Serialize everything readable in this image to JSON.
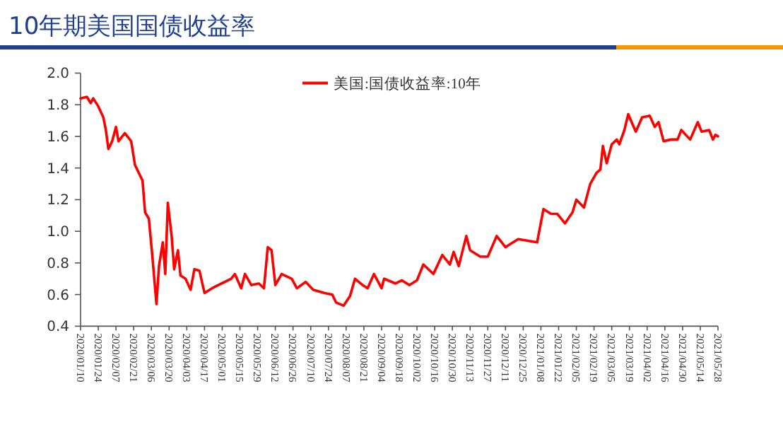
{
  "chart_data": {
    "type": "line",
    "title": "10年期美国国债收益率",
    "x": [
      "2020-01-10",
      "2020-01-15",
      "2020-01-18",
      "2020-01-20",
      "2020-01-24",
      "2020-01-28",
      "2020-01-30",
      "2020-02-01",
      "2020-02-04",
      "2020-02-07",
      "2020-02-09",
      "2020-02-14",
      "2020-02-19",
      "2020-02-22",
      "2020-02-28",
      "2020-03-01",
      "2020-03-04",
      "2020-03-07",
      "2020-03-10",
      "2020-03-12",
      "2020-03-15",
      "2020-03-17",
      "2020-03-19",
      "2020-03-22",
      "2020-03-24",
      "2020-03-27",
      "2020-03-29",
      "2020-04-02",
      "2020-04-06",
      "2020-04-09",
      "2020-04-13",
      "2020-04-17",
      "2020-04-23",
      "2020-04-28",
      "2020-05-08",
      "2020-05-11",
      "2020-05-16",
      "2020-05-19",
      "2020-05-24",
      "2020-05-30",
      "2020-06-03",
      "2020-06-06",
      "2020-06-09",
      "2020-06-12",
      "2020-06-17",
      "2020-06-25",
      "2020-06-29",
      "2020-07-06",
      "2020-07-12",
      "2020-07-21",
      "2020-07-27",
      "2020-07-30",
      "2020-08-05",
      "2020-08-10",
      "2020-08-14",
      "2020-08-20",
      "2020-08-24",
      "2020-08-29",
      "2020-09-04",
      "2020-09-06",
      "2020-09-15",
      "2020-09-20",
      "2020-09-26",
      "2020-10-02",
      "2020-10-07",
      "2020-10-15",
      "2020-10-22",
      "2020-10-28",
      "2020-10-31",
      "2020-11-04",
      "2020-11-10",
      "2020-11-13",
      "2020-11-21",
      "2020-11-27",
      "2020-12-04",
      "2020-12-11",
      "2020-12-21",
      "2021-01-05",
      "2021-01-10",
      "2021-01-16",
      "2021-01-21",
      "2021-01-27",
      "2021-02-02",
      "2021-02-05",
      "2021-02-11",
      "2021-02-16",
      "2021-02-21",
      "2021-02-24",
      "2021-02-26",
      "2021-03-01",
      "2021-03-05",
      "2021-03-09",
      "2021-03-11",
      "2021-03-15",
      "2021-03-18",
      "2021-03-24",
      "2021-03-29",
      "2021-04-04",
      "2021-04-08",
      "2021-04-11",
      "2021-04-15",
      "2021-04-21",
      "2021-04-26",
      "2021-04-29",
      "2021-05-06",
      "2021-05-12",
      "2021-05-15",
      "2021-05-21",
      "2021-05-24",
      "2021-05-26",
      "2021-05-28"
    ],
    "series": [
      {
        "name": "美国:国债收益率:10年",
        "color": "#ff0000",
        "values": [
          1.84,
          1.85,
          1.81,
          1.84,
          1.79,
          1.72,
          1.64,
          1.52,
          1.57,
          1.66,
          1.57,
          1.62,
          1.57,
          1.42,
          1.32,
          1.12,
          1.08,
          0.82,
          0.54,
          0.78,
          0.93,
          0.73,
          1.18,
          0.97,
          0.76,
          0.88,
          0.72,
          0.7,
          0.63,
          0.76,
          0.75,
          0.61,
          0.64,
          0.66,
          0.7,
          0.73,
          0.64,
          0.73,
          0.66,
          0.67,
          0.64,
          0.9,
          0.88,
          0.66,
          0.73,
          0.7,
          0.64,
          0.68,
          0.63,
          0.61,
          0.6,
          0.55,
          0.53,
          0.59,
          0.7,
          0.66,
          0.64,
          0.73,
          0.64,
          0.7,
          0.67,
          0.69,
          0.66,
          0.69,
          0.79,
          0.73,
          0.85,
          0.79,
          0.87,
          0.78,
          0.97,
          0.88,
          0.84,
          0.84,
          0.97,
          0.9,
          0.95,
          0.93,
          1.14,
          1.11,
          1.11,
          1.05,
          1.12,
          1.2,
          1.15,
          1.3,
          1.37,
          1.39,
          1.54,
          1.43,
          1.55,
          1.58,
          1.55,
          1.64,
          1.74,
          1.63,
          1.72,
          1.73,
          1.66,
          1.69,
          1.57,
          1.58,
          1.58,
          1.64,
          1.58,
          1.69,
          1.63,
          1.64,
          1.58,
          1.61,
          1.6
        ]
      }
    ],
    "xlim": [
      "2020-01-10",
      "2021-05-28"
    ],
    "xticks": [
      {
        "value": "2020-01-10",
        "label": "2020/01/10"
      },
      {
        "value": "2020-01-24",
        "label": "2020/01/24"
      },
      {
        "value": "2020-02-07",
        "label": "2020/02/07"
      },
      {
        "value": "2020-02-21",
        "label": "2020/02/21"
      },
      {
        "value": "2020-03-06",
        "label": "2020/03/06"
      },
      {
        "value": "2020-03-20",
        "label": "2020/03/20"
      },
      {
        "value": "2020-04-03",
        "label": "2020/04/03"
      },
      {
        "value": "2020-04-17",
        "label": "2020/04/17"
      },
      {
        "value": "2020-05-01",
        "label": "2020/05/01"
      },
      {
        "value": "2020-05-15",
        "label": "2020/05/15"
      },
      {
        "value": "2020-05-29",
        "label": "2020/05/29"
      },
      {
        "value": "2020-06-12",
        "label": "2020/06/12"
      },
      {
        "value": "2020-06-26",
        "label": "2020/06/26"
      },
      {
        "value": "2020-07-10",
        "label": "2020/07/10"
      },
      {
        "value": "2020-07-24",
        "label": "2020/07/24"
      },
      {
        "value": "2020-08-07",
        "label": "2020/08/07"
      },
      {
        "value": "2020-08-21",
        "label": "2020/08/21"
      },
      {
        "value": "2020-09-04",
        "label": "2020/09/04"
      },
      {
        "value": "2020-09-18",
        "label": "2020/09/18"
      },
      {
        "value": "2020-10-02",
        "label": "2020/10/02"
      },
      {
        "value": "2020-10-16",
        "label": "2020/10/16"
      },
      {
        "value": "2020-10-30",
        "label": "2020/10/30"
      },
      {
        "value": "2020-11-13",
        "label": "2020/11/13"
      },
      {
        "value": "2020-11-27",
        "label": "2020/11/27"
      },
      {
        "value": "2020-12-11",
        "label": "2020/12/11"
      },
      {
        "value": "2020-12-25",
        "label": "2020/12/25"
      },
      {
        "value": "2021-01-08",
        "label": "2021/01/08"
      },
      {
        "value": "2021-01-22",
        "label": "2021/01/22"
      },
      {
        "value": "2021-02-05",
        "label": "2021/02/05"
      },
      {
        "value": "2021-02-19",
        "label": "2021/02/19"
      },
      {
        "value": "2021-03-05",
        "label": "2021/03/05"
      },
      {
        "value": "2021-03-19",
        "label": "2021/03/19"
      },
      {
        "value": "2021-04-02",
        "label": "2021/04/02"
      },
      {
        "value": "2021-04-16",
        "label": "2021/04/16"
      },
      {
        "value": "2021-04-30",
        "label": "2021/04/30"
      },
      {
        "value": "2021-05-14",
        "label": "2021/05/14"
      },
      {
        "value": "2021-05-28",
        "label": "2021/05/28"
      }
    ],
    "ylim": [
      0.4,
      2.0
    ],
    "yticks": [
      {
        "value": 0.4,
        "label": "0.4"
      },
      {
        "value": 0.6,
        "label": "0.6"
      },
      {
        "value": 0.8,
        "label": "0.8"
      },
      {
        "value": 1.0,
        "label": "1.0"
      },
      {
        "value": 1.2,
        "label": "1.2"
      },
      {
        "value": 1.4,
        "label": "1.4"
      },
      {
        "value": 1.6,
        "label": "1.6"
      },
      {
        "value": 1.8,
        "label": "1.8"
      },
      {
        "value": 2.0,
        "label": "2.0"
      }
    ],
    "grid": false,
    "legend": "top",
    "marker": "none",
    "line_style": "solid"
  }
}
